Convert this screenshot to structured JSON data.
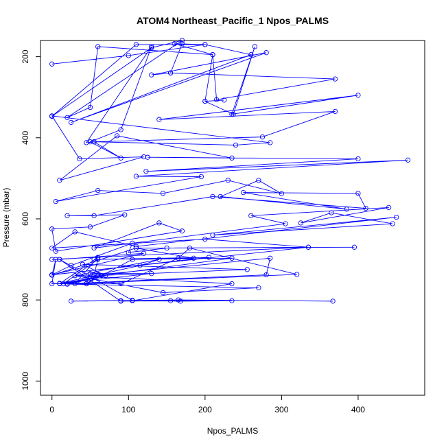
{
  "chart_data": {
    "type": "scatter",
    "title": "ATOM4 Northeast_Pacific_1 Npos_PALMS",
    "xlabel": "Npos_PALMS",
    "ylabel": "Pressure (mbar)",
    "xlim": [
      -15,
      487
    ],
    "ylim": [
      1035,
      160
    ],
    "y_reversed": true,
    "x_ticks": [
      0,
      100,
      200,
      300,
      400
    ],
    "y_ticks": [
      200,
      400,
      600,
      800,
      1000
    ],
    "grid": false,
    "legend": "none",
    "color": "#0000ff",
    "series": [
      {
        "connected": true,
        "points": [
          [
            0,
            218
          ],
          [
            100,
            197
          ],
          [
            200,
            170
          ],
          [
            110,
            170
          ],
          [
            0,
            347
          ],
          [
            130,
            178
          ],
          [
            170,
            160
          ],
          [
            20,
            350
          ],
          [
            50,
            325
          ],
          [
            60,
            175
          ],
          [
            210,
            195
          ],
          [
            160,
            168
          ],
          [
            200,
            170
          ],
          [
            260,
            195
          ],
          [
            25,
            362
          ],
          [
            280,
            190
          ],
          [
            130,
            245
          ],
          [
            155,
            240
          ],
          [
            170,
            168
          ],
          [
            155,
            240
          ],
          [
            370,
            255
          ],
          [
            215,
            306
          ],
          [
            210,
            195
          ],
          [
            200,
            310
          ],
          [
            225,
            307
          ],
          [
            200,
            310
          ],
          [
            237,
            342
          ],
          [
            265,
            175
          ],
          [
            235,
            342
          ],
          [
            400,
            295
          ],
          [
            140,
            355
          ],
          [
            370,
            335
          ],
          [
            275,
            398
          ],
          [
            55,
            410
          ],
          [
            45,
            412
          ],
          [
            130,
            175
          ],
          [
            90,
            380
          ],
          [
            50,
            410
          ],
          [
            90,
            450
          ],
          [
            55,
            410
          ],
          [
            240,
            418
          ],
          [
            285,
            412
          ],
          [
            0,
            346
          ],
          [
            36,
            452
          ],
          [
            120,
            447
          ],
          [
            10,
            505
          ],
          [
            85,
            395
          ],
          [
            235,
            450
          ],
          [
            125,
            448
          ],
          [
            400,
            452
          ],
          [
            123,
            483
          ],
          [
            465,
            455
          ],
          [
            110,
            495
          ],
          [
            195,
            496
          ],
          [
            5,
            557
          ],
          [
            60,
            530
          ],
          [
            145,
            537
          ],
          [
            230,
            505
          ],
          [
            300,
            538
          ],
          [
            270,
            505
          ],
          [
            220,
            545
          ],
          [
            385,
            576
          ],
          [
            250,
            535
          ],
          [
            400,
            537
          ],
          [
            410,
            574
          ],
          [
            210,
            545
          ],
          [
            55,
            592
          ],
          [
            20,
            592
          ],
          [
            95,
            590
          ],
          [
            50,
            620
          ],
          [
            0,
            625
          ],
          [
            5,
            680
          ],
          [
            170,
            630
          ],
          [
            140,
            610
          ],
          [
            55,
            672
          ],
          [
            305,
            612
          ],
          [
            260,
            592
          ],
          [
            440,
            572
          ],
          [
            325,
            610
          ],
          [
            365,
            585
          ],
          [
            445,
            612
          ],
          [
            210,
            640
          ],
          [
            450,
            596
          ],
          [
            110,
            668
          ],
          [
            30,
            632
          ],
          [
            0,
            672
          ],
          [
            200,
            650
          ],
          [
            335,
            670
          ],
          [
            0,
            700
          ],
          [
            10,
            700
          ],
          [
            120,
            685
          ],
          [
            0,
            738
          ],
          [
            25,
            715
          ],
          [
            105,
            660
          ],
          [
            100,
            683
          ],
          [
            150,
            672
          ],
          [
            335,
            670
          ],
          [
            0,
            738
          ],
          [
            205,
            695
          ],
          [
            55,
            700
          ],
          [
            185,
            697
          ],
          [
            110,
            672
          ],
          [
            395,
            670
          ],
          [
            110,
            672
          ],
          [
            0,
            739
          ],
          [
            5,
            700
          ],
          [
            0,
            760
          ],
          [
            45,
            760
          ],
          [
            50,
            735
          ],
          [
            130,
            735
          ],
          [
            10,
            759
          ],
          [
            115,
            715
          ],
          [
            140,
            700
          ],
          [
            30,
            740
          ],
          [
            55,
            738
          ],
          [
            60,
            700
          ],
          [
            15,
            760
          ],
          [
            70,
            740
          ],
          [
            10,
            760
          ],
          [
            60,
            695
          ],
          [
            30,
            760
          ],
          [
            60,
            738
          ],
          [
            285,
            697
          ],
          [
            280,
            738
          ],
          [
            20,
            760
          ],
          [
            65,
            740
          ],
          [
            235,
            697
          ],
          [
            105,
            700
          ],
          [
            45,
            760
          ],
          [
            60,
            740
          ],
          [
            255,
            725
          ],
          [
            40,
            712
          ],
          [
            70,
            740
          ],
          [
            20,
            761
          ],
          [
            90,
            760
          ],
          [
            165,
            697
          ],
          [
            180,
            672
          ],
          [
            320,
            737
          ],
          [
            20,
            761
          ],
          [
            270,
            770
          ],
          [
            145,
            782
          ],
          [
            30,
            740
          ],
          [
            235,
            760
          ],
          [
            105,
            802
          ],
          [
            155,
            802
          ],
          [
            90,
            803
          ],
          [
            10,
            700
          ],
          [
            105,
            801
          ],
          [
            235,
            802
          ],
          [
            168,
            803
          ],
          [
            90,
            802
          ],
          [
            25,
            803
          ],
          [
            165,
            800
          ],
          [
            367,
            803
          ]
        ]
      }
    ]
  }
}
